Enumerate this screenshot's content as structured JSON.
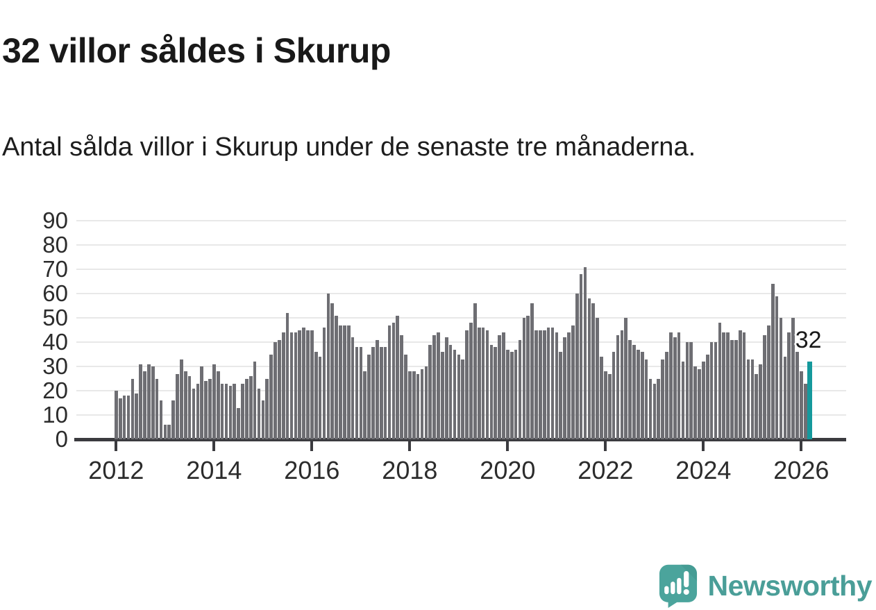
{
  "header": {
    "title": "32 villor såldes i Skurup",
    "subtitle": "Antal sålda villor i Skurup under de senaste tre månaderna."
  },
  "chart_data": {
    "type": "bar",
    "title": "32 villor såldes i Skurup",
    "xlabel": "",
    "ylabel": "",
    "ylim": [
      0,
      90
    ],
    "grid": true,
    "y_ticks": [
      0,
      10,
      20,
      30,
      40,
      50,
      60,
      70,
      80,
      90
    ],
    "x_tick_labels": [
      "2012",
      "2014",
      "2016",
      "2018",
      "2020",
      "2022",
      "2024",
      "2026"
    ],
    "x_tick_every_n_bars": 24,
    "start_year": 2012,
    "frequency": "monthly-rolling-3-month-sum",
    "values": [
      20,
      17,
      18,
      18,
      25,
      19,
      31,
      28,
      31,
      30,
      25,
      16,
      6,
      6,
      16,
      27,
      33,
      28,
      26,
      21,
      23,
      30,
      24,
      25,
      31,
      28,
      23,
      23,
      22,
      23,
      13,
      23,
      25,
      26,
      32,
      21,
      16,
      25,
      35,
      40,
      41,
      44,
      52,
      44,
      44,
      45,
      46,
      45,
      45,
      36,
      34,
      46,
      60,
      56,
      51,
      47,
      47,
      47,
      42,
      38,
      38,
      28,
      35,
      38,
      41,
      38,
      38,
      47,
      48,
      51,
      43,
      35,
      28,
      28,
      27,
      29,
      30,
      39,
      43,
      44,
      36,
      42,
      39,
      37,
      35,
      33,
      45,
      48,
      56,
      46,
      46,
      45,
      39,
      38,
      43,
      44,
      37,
      36,
      37,
      41,
      50,
      51,
      56,
      45,
      45,
      45,
      46,
      46,
      44,
      36,
      42,
      44,
      47,
      60,
      68,
      71,
      58,
      56,
      50,
      34,
      28,
      27,
      36,
      43,
      45,
      50,
      41,
      39,
      37,
      36,
      33,
      25,
      23,
      25,
      33,
      36,
      44,
      42,
      44,
      32,
      40,
      40,
      30,
      29,
      32,
      35,
      40,
      40,
      48,
      44,
      44,
      41,
      41,
      45,
      44,
      33,
      33,
      27,
      31,
      43,
      47,
      64,
      59,
      50,
      34,
      44,
      50,
      36,
      28,
      23,
      32
    ],
    "highlight_last_bar": true,
    "highlight_value_label": "32",
    "colors": {
      "bar": "#6e6e73",
      "highlight": "#15999c",
      "gridline": "#e8e8e8",
      "axis": "#3b3b3f",
      "tick_label": "#2c2c2c"
    }
  },
  "footer": {
    "brand": "Newsworthy",
    "brand_color": "#4a9e98",
    "logo_icon": "newsworthy-speech-bubble-chart-icon",
    "logo_colors": {
      "bubble": "#4ba49c",
      "fold": "#42958e",
      "glyphs": "#ffffff"
    }
  }
}
